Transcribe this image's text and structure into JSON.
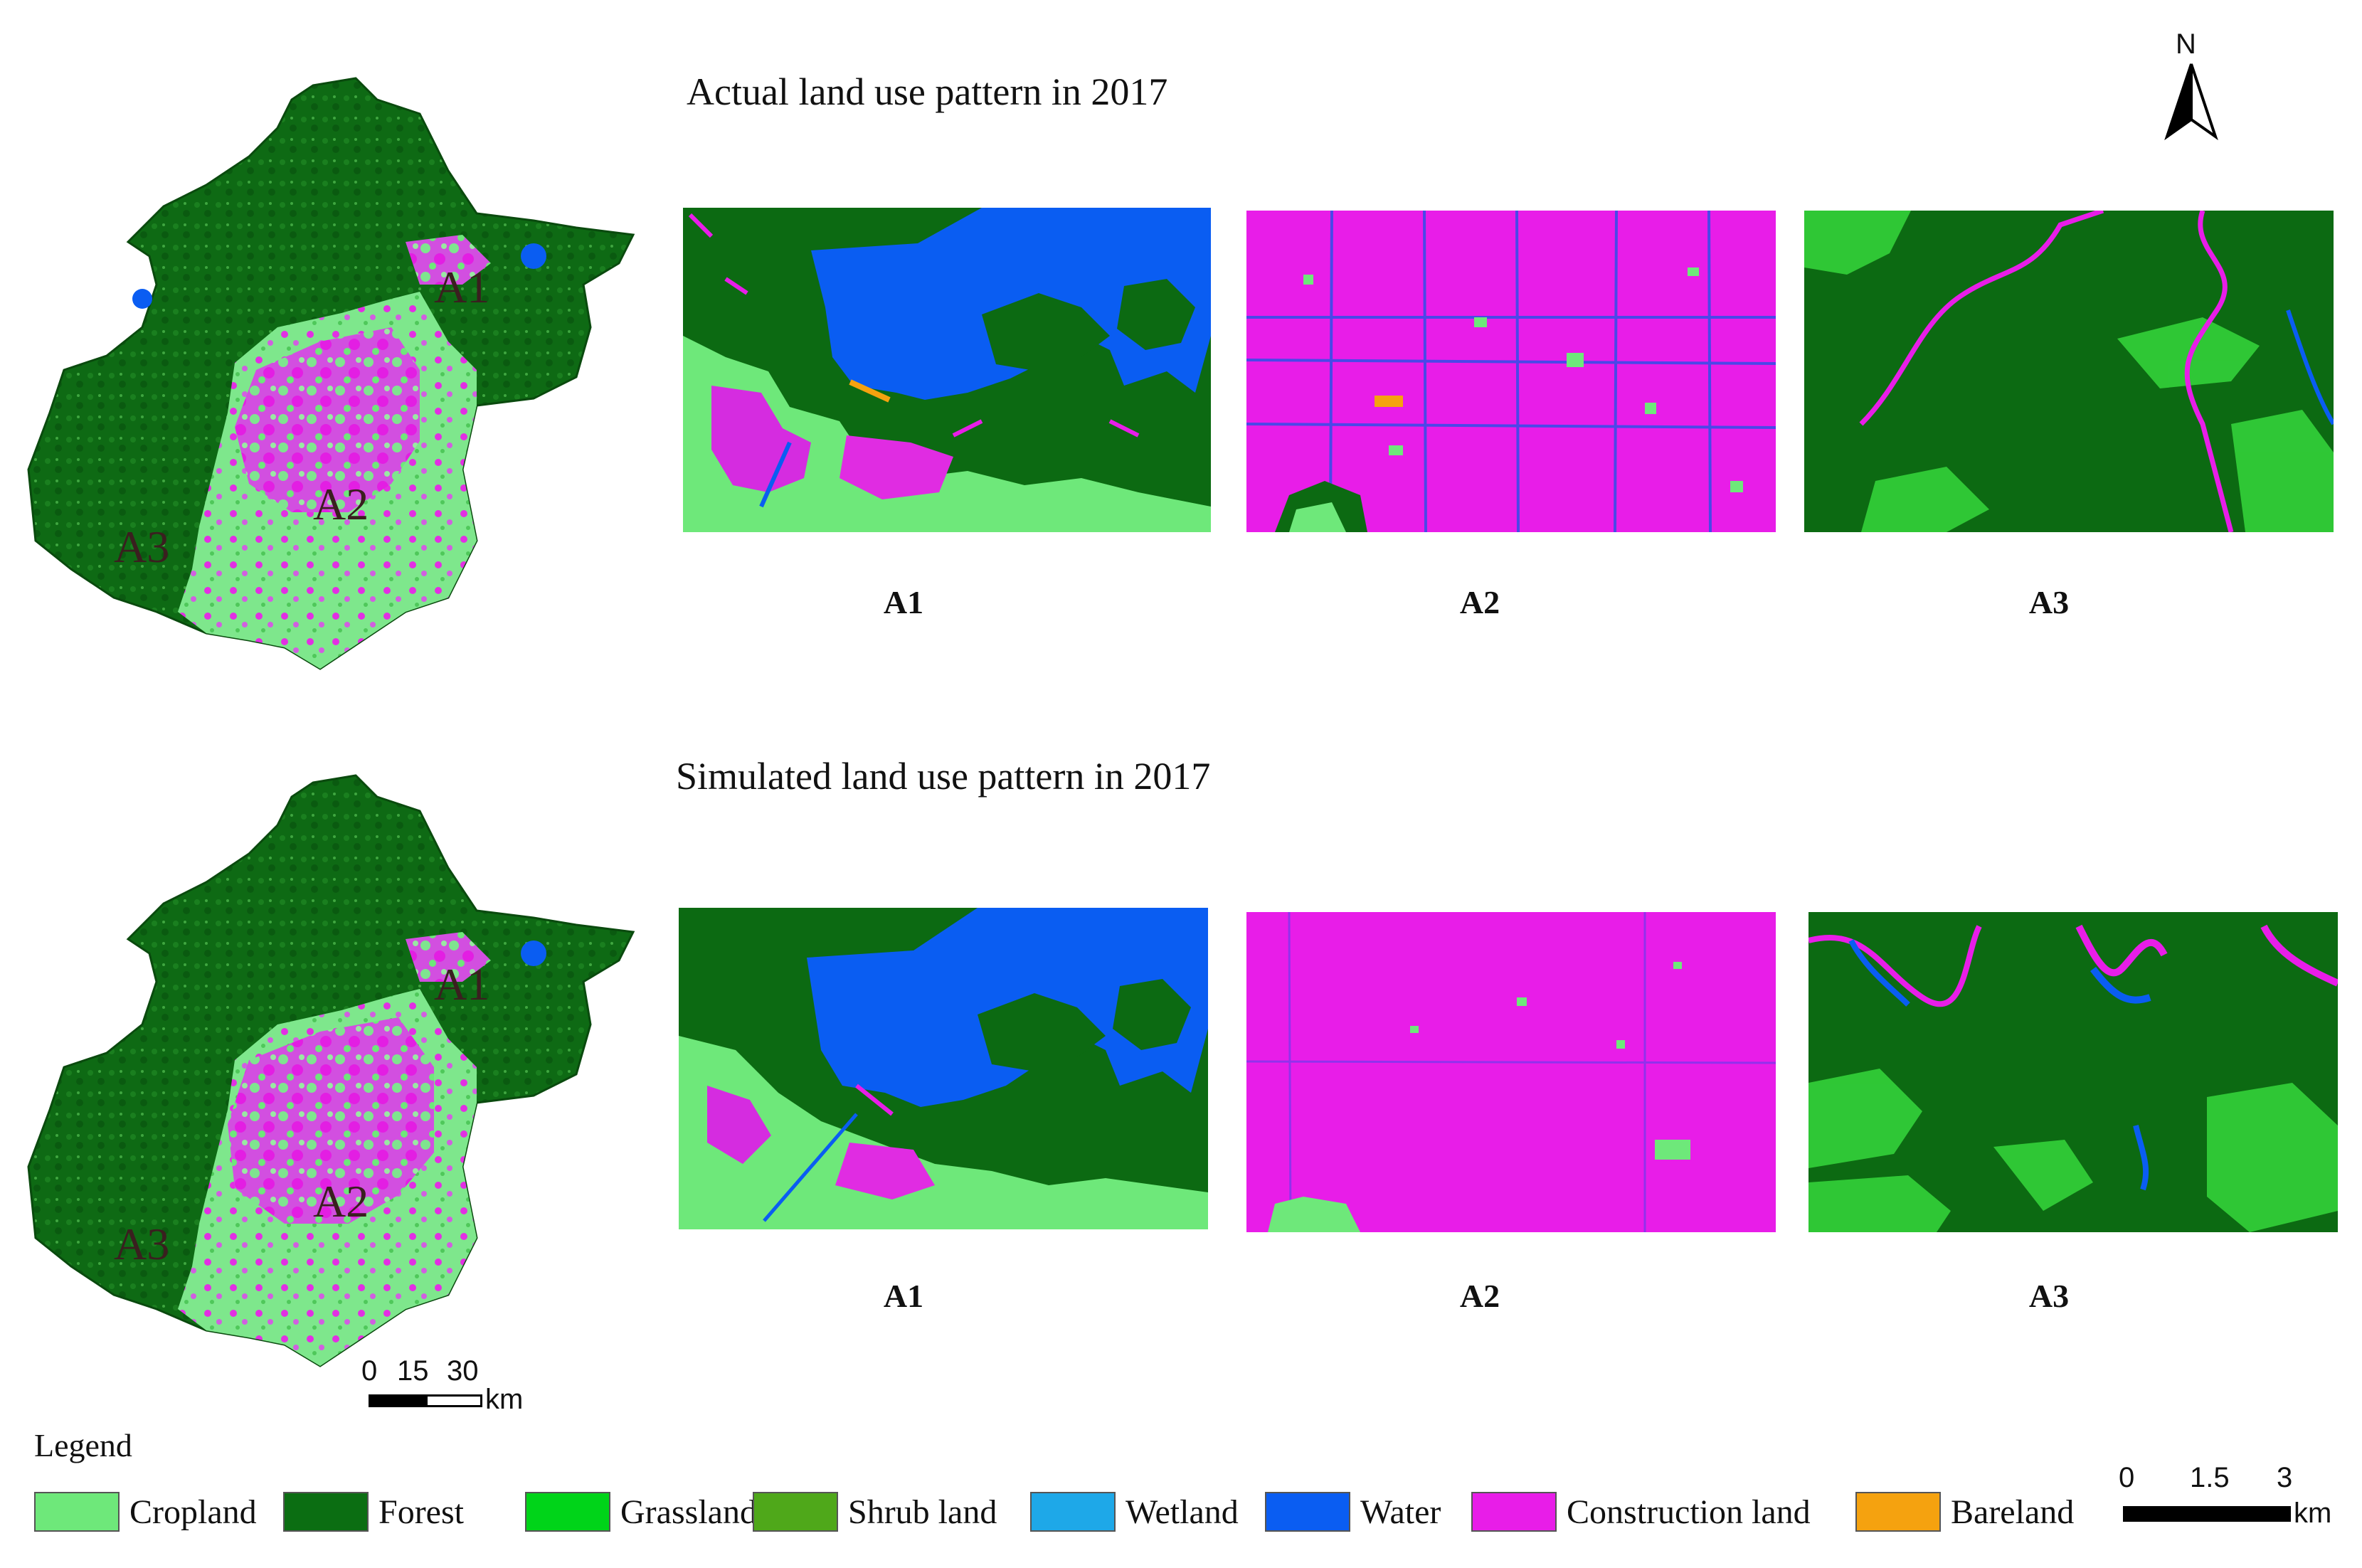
{
  "titles": {
    "actual": "Actual land use pattern in 2017",
    "simulated": "Simulated land use pattern in 2017"
  },
  "panels": {
    "actual": [
      "A1",
      "A2",
      "A3"
    ],
    "simulated": [
      "A1",
      "A2",
      "A3"
    ]
  },
  "overview_map_labels": [
    "A1",
    "A2",
    "A3"
  ],
  "north_arrow": {
    "letter": "N",
    "icon": "north-arrow-icon"
  },
  "overview_scale": {
    "ticks": [
      "0",
      "15",
      "30"
    ],
    "unit": "km"
  },
  "panel_scale": {
    "ticks": [
      "0",
      "1.5",
      "3"
    ],
    "unit": "km"
  },
  "legend": {
    "title": "Legend",
    "items": [
      {
        "label": "Cropland",
        "color": "#6ee87a"
      },
      {
        "label": "Forest",
        "color": "#0b6e12"
      },
      {
        "label": "Grassland",
        "color": "#00d419"
      },
      {
        "label": "Shrub land",
        "color": "#4fa81a"
      },
      {
        "label": "Wetland",
        "color": "#1ea8e8"
      },
      {
        "label": "Water",
        "color": "#0a5df2"
      },
      {
        "label": "Construction land",
        "color": "#e81de8"
      },
      {
        "label": "Bareland",
        "color": "#f5a20f"
      }
    ]
  }
}
